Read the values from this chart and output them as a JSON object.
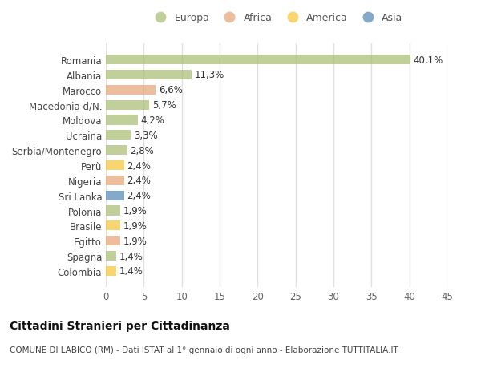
{
  "countries": [
    "Romania",
    "Albania",
    "Marocco",
    "Macedonia d/N.",
    "Moldova",
    "Ucraina",
    "Serbia/Montenegro",
    "Perù",
    "Nigeria",
    "Sri Lanka",
    "Polonia",
    "Brasile",
    "Egitto",
    "Spagna",
    "Colombia"
  ],
  "values": [
    40.1,
    11.3,
    6.6,
    5.7,
    4.2,
    3.3,
    2.8,
    2.4,
    2.4,
    2.4,
    1.9,
    1.9,
    1.9,
    1.4,
    1.4
  ],
  "labels": [
    "40,1%",
    "11,3%",
    "6,6%",
    "5,7%",
    "4,2%",
    "3,3%",
    "2,8%",
    "2,4%",
    "2,4%",
    "2,4%",
    "1,9%",
    "1,9%",
    "1,9%",
    "1,4%",
    "1,4%"
  ],
  "continents": [
    "Europa",
    "Europa",
    "Africa",
    "Europa",
    "Europa",
    "Europa",
    "Europa",
    "America",
    "Africa",
    "Asia",
    "Europa",
    "America",
    "Africa",
    "Europa",
    "America"
  ],
  "colors": {
    "Europa": "#adc178",
    "Africa": "#e8a87c",
    "America": "#f5c842",
    "Asia": "#5b8db8"
  },
  "legend_labels": [
    "Europa",
    "Africa",
    "America",
    "Asia"
  ],
  "legend_colors": [
    "#adc178",
    "#e8a87c",
    "#f5c842",
    "#5b8db8"
  ],
  "title": "Cittadini Stranieri per Cittadinanza",
  "subtitle": "COMUNE DI LABICO (RM) - Dati ISTAT al 1° gennaio di ogni anno - Elaborazione TUTTITALIA.IT",
  "xlim": [
    0,
    45
  ],
  "xticks": [
    0,
    5,
    10,
    15,
    20,
    25,
    30,
    35,
    40,
    45
  ],
  "fig_bg": "#ffffff",
  "plot_bg": "#ffffff",
  "bar_alpha": 0.75,
  "label_fontsize": 8.5,
  "ytick_fontsize": 8.5,
  "xtick_fontsize": 8.5,
  "legend_fontsize": 9,
  "title_fontsize": 10,
  "subtitle_fontsize": 7.5
}
